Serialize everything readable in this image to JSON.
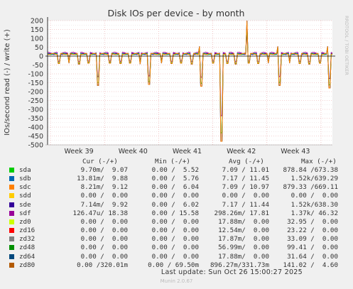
{
  "chart_data": {
    "type": "line",
    "title": "Disk IOs per device - by month",
    "ylabel": "IOs/second read (-) / write (+)",
    "side_label": "RRDTOOL / TOBI OETIKER",
    "ylim": [
      -500,
      200
    ],
    "yticks": [
      200,
      150,
      100,
      50,
      0,
      -50,
      -100,
      -150,
      -200,
      -250,
      -300,
      -350,
      -400,
      -450,
      -500
    ],
    "xticks": [
      "Week 39",
      "Week 40",
      "Week 41",
      "Week 42",
      "Week 43"
    ],
    "grid": true,
    "series": [
      {
        "name": "sda",
        "color": "#00cc00"
      },
      {
        "name": "sdb",
        "color": "#0066b3"
      },
      {
        "name": "sdc",
        "color": "#ff8000"
      },
      {
        "name": "sdd",
        "color": "#ffcc00"
      },
      {
        "name": "sde",
        "color": "#330099"
      },
      {
        "name": "sdf",
        "color": "#990099"
      },
      {
        "name": "zd0",
        "color": "#ccff00"
      },
      {
        "name": "zd16",
        "color": "#ff0000"
      },
      {
        "name": "zd32",
        "color": "#808080"
      },
      {
        "name": "zd48",
        "color": "#008f00"
      },
      {
        "name": "zd64",
        "color": "#00487d"
      },
      {
        "name": "zd80",
        "color": "#b35a00"
      }
    ],
    "spikes": [
      {
        "x": 0.04,
        "y": -42
      },
      {
        "x": 0.075,
        "y": -40
      },
      {
        "x": 0.11,
        "y": -45
      },
      {
        "x": 0.145,
        "y": -40
      },
      {
        "x": 0.175,
        "y": 65
      },
      {
        "x": 0.178,
        "y": -165
      },
      {
        "x": 0.22,
        "y": -40
      },
      {
        "x": 0.255,
        "y": -42
      },
      {
        "x": 0.29,
        "y": -40
      },
      {
        "x": 0.325,
        "y": -45
      },
      {
        "x": 0.355,
        "y": 55
      },
      {
        "x": 0.358,
        "y": -160
      },
      {
        "x": 0.4,
        "y": -40
      },
      {
        "x": 0.435,
        "y": -42
      },
      {
        "x": 0.47,
        "y": -40
      },
      {
        "x": 0.505,
        "y": -45
      },
      {
        "x": 0.535,
        "y": 55
      },
      {
        "x": 0.54,
        "y": -170
      },
      {
        "x": 0.58,
        "y": -40
      },
      {
        "x": 0.61,
        "y": -480
      },
      {
        "x": 0.63,
        "y": -42
      },
      {
        "x": 0.66,
        "y": -45
      },
      {
        "x": 0.7,
        "y": 200
      },
      {
        "x": 0.705,
        "y": -40
      },
      {
        "x": 0.74,
        "y": -42
      },
      {
        "x": 0.775,
        "y": -40
      },
      {
        "x": 0.81,
        "y": 55
      },
      {
        "x": 0.813,
        "y": -165
      },
      {
        "x": 0.85,
        "y": -40
      },
      {
        "x": 0.885,
        "y": -42
      },
      {
        "x": 0.92,
        "y": -45
      },
      {
        "x": 0.955,
        "y": -40
      },
      {
        "x": 0.985,
        "y": 55
      },
      {
        "x": 0.988,
        "y": -180
      }
    ]
  },
  "legend": {
    "headers": {
      "cur": "Cur (-/+)",
      "min": "Min (-/+)",
      "avg": "Avg (-/+)",
      "max": "Max (-/+)"
    },
    "rows": [
      {
        "name": "sda",
        "cur": "9.70m/  9.07",
        "min": "0.00 /  5.52",
        "avg": "7.09 / 11.01",
        "max": "878.84 /673.38"
      },
      {
        "name": "sdb",
        "cur": "13.81m/  9.88",
        "min": "0.00 /  5.76",
        "avg": "7.17 / 11.45",
        "max": "1.52k/639.29"
      },
      {
        "name": "sdc",
        "cur": "8.21m/  9.12",
        "min": "0.00 /  6.04",
        "avg": "7.09 / 10.97",
        "max": "879.33 /669.11"
      },
      {
        "name": "sdd",
        "cur": "0.00 /  0.00",
        "min": "0.00 /  0.00",
        "avg": "0.00 /  0.00",
        "max": "0.00 /  0.00"
      },
      {
        "name": "sde",
        "cur": "7.14m/  9.92",
        "min": "0.00 /  6.02",
        "avg": "7.17 / 11.44",
        "max": "1.52k/638.30"
      },
      {
        "name": "sdf",
        "cur": "126.47u/ 18.38",
        "min": "0.00 / 15.58",
        "avg": "298.26m/ 17.81",
        "max": "1.37k/ 46.32"
      },
      {
        "name": "zd0",
        "cur": "0.00 /  0.00",
        "min": "0.00 /  0.00",
        "avg": "17.88m/  0.00",
        "max": "32.95 /  0.00"
      },
      {
        "name": "zd16",
        "cur": "0.00 /  0.00",
        "min": "0.00 /  0.00",
        "avg": "12.54m/  0.00",
        "max": "23.22 /  0.00"
      },
      {
        "name": "zd32",
        "cur": "0.00 /  0.00",
        "min": "0.00 /  0.00",
        "avg": "17.87m/  0.00",
        "max": "33.09 /  0.00"
      },
      {
        "name": "zd48",
        "cur": "0.00 /  0.00",
        "min": "0.00 /  0.00",
        "avg": "56.99m/  0.00",
        "max": "99.41 /  0.00"
      },
      {
        "name": "zd64",
        "cur": "0.00 /  0.00",
        "min": "0.00 /  0.00",
        "avg": "17.88m/  0.00",
        "max": "31.64 /  0.00"
      },
      {
        "name": "zd80",
        "cur": "0.00 /320.01m",
        "min": "0.00 / 69.50m",
        "avg": "896.27m/331.73m",
        "max": "141.02 /  4.60"
      }
    ]
  },
  "footer": {
    "last_update": "Last update: Sun Oct 26 15:00:27 2025",
    "munin": "Munin 2.0.67"
  }
}
